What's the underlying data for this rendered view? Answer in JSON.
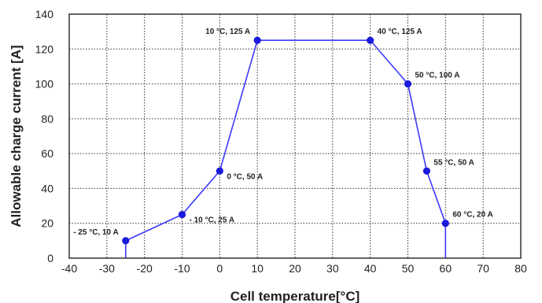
{
  "chart_data": {
    "type": "line",
    "title": "",
    "xlabel": "Cell temperature[°C]",
    "ylabel": "Allowable charge current [A]",
    "xlim": [
      -40,
      80
    ],
    "ylim": [
      0,
      140
    ],
    "x_ticks": [
      -40,
      -30,
      -20,
      -10,
      0,
      10,
      20,
      30,
      40,
      50,
      60,
      70,
      80
    ],
    "y_ticks": [
      0,
      20,
      40,
      60,
      80,
      100,
      120,
      140
    ],
    "grid": true,
    "colors": {
      "line": "#3a3aff",
      "marker": "#1a1adb",
      "grid": "#333333",
      "frame": "#222222"
    },
    "series": [
      {
        "x": [
          -25,
          -25,
          -10,
          0,
          10,
          40,
          50,
          55,
          60,
          60
        ],
        "y": [
          0,
          10,
          25,
          50,
          125,
          125,
          100,
          50,
          20,
          0
        ],
        "markers": [
          false,
          true,
          true,
          true,
          true,
          true,
          true,
          true,
          true,
          false
        ]
      }
    ],
    "annotations": [
      {
        "x": -25,
        "y": 10,
        "text": "- 25 °C, 10 A",
        "anchor": "end",
        "side": "above"
      },
      {
        "x": -10,
        "y": 25,
        "text": "- 10 °C, 25 A",
        "anchor": "start",
        "side": "below"
      },
      {
        "x": 0,
        "y": 50,
        "text": "0 °C, 50 A",
        "anchor": "start",
        "side": "below"
      },
      {
        "x": 10,
        "y": 125,
        "text": "10 °C, 125 A",
        "anchor": "end",
        "side": "above"
      },
      {
        "x": 40,
        "y": 125,
        "text": "40 °C, 125 A",
        "anchor": "start",
        "side": "above"
      },
      {
        "x": 50,
        "y": 100,
        "text": "50 °C, 100 A",
        "anchor": "start",
        "side": "above"
      },
      {
        "x": 55,
        "y": 50,
        "text": "55 °C, 50 A",
        "anchor": "start",
        "side": "above"
      },
      {
        "x": 60,
        "y": 20,
        "text": "60 °C, 20 A",
        "anchor": "start",
        "side": "above"
      }
    ]
  }
}
